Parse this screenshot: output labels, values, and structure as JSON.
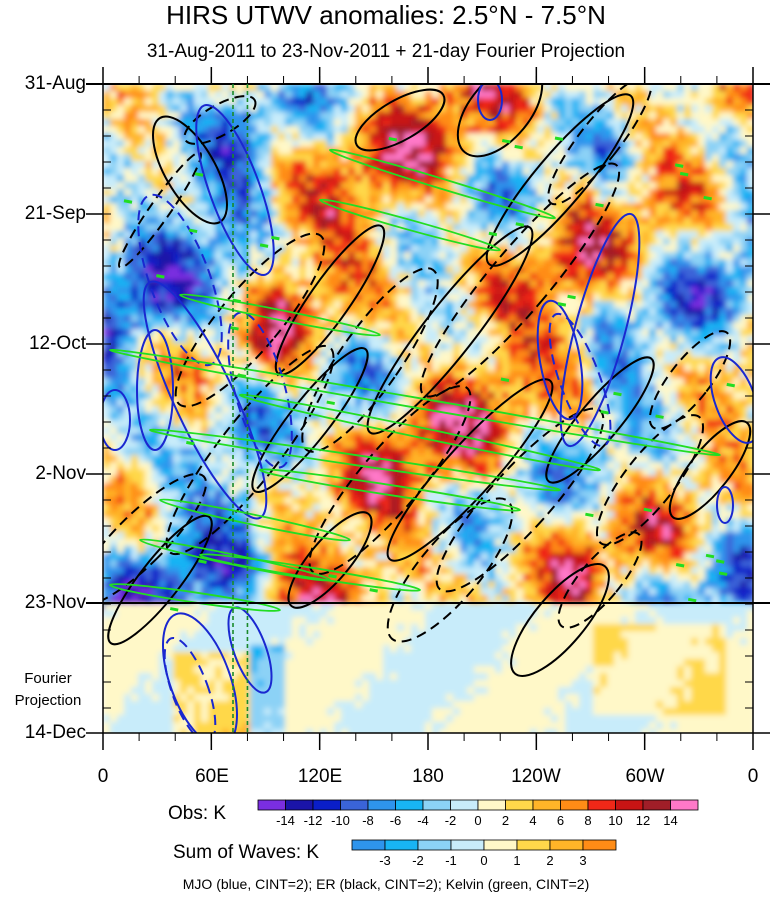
{
  "chart_data": {
    "type": "heatmap",
    "title": "HIRS UTWV anomalies: 2.5°N - 7.5°N",
    "subtitle": "31-Aug-2011 to 23-Nov-2011 + 21-day Fourier Projection",
    "y_axis": {
      "tick_labels": [
        "31-Aug",
        "21-Sep",
        "12-Oct",
        "2-Nov",
        "23-Nov",
        "14-Dec"
      ],
      "projection_label_line1": "Fourier",
      "projection_label_line2": "Projection",
      "observed_end_label": "23-Nov"
    },
    "x_axis": {
      "tick_labels": [
        "0",
        "60E",
        "120E",
        "180",
        "120W",
        "60W",
        "0"
      ],
      "range_deg_east": [
        0,
        360
      ]
    },
    "reference_longitudes_deg_east": [
      72,
      80
    ],
    "obs_colorbar": {
      "label": "Obs: K",
      "levels": [
        "-14",
        "-12",
        "-10",
        "-8",
        "-6",
        "-4",
        "-2",
        "0",
        "2",
        "4",
        "6",
        "8",
        "10",
        "12",
        "14"
      ],
      "colors": [
        "#7a2ee0",
        "#1a14a8",
        "#0a1ec8",
        "#3a64d8",
        "#2e94ec",
        "#18b4f4",
        "#8cd2f6",
        "#c8ecfa",
        "#fff8c8",
        "#ffd84a",
        "#ffb428",
        "#ff8c16",
        "#f02818",
        "#c81414",
        "#a01e28",
        "#ff78c8"
      ]
    },
    "waves_colorbar": {
      "label": "Sum of Waves: K",
      "levels": [
        "-3",
        "-2",
        "-1",
        "0",
        "1",
        "2",
        "3"
      ],
      "colors": [
        "#2e94ec",
        "#18b4f4",
        "#8cd2f6",
        "#c8ecfa",
        "#fff8c8",
        "#ffd84a",
        "#ffb428",
        "#ff8c16"
      ]
    },
    "footnote": "MJO (blue, CINT=2); ER (black, CINT=2); Kelvin (green, CINT=2)",
    "contour_colors": {
      "mjo": "#1a28d0",
      "er": "#000000",
      "kelvin": "#22dd22"
    }
  }
}
